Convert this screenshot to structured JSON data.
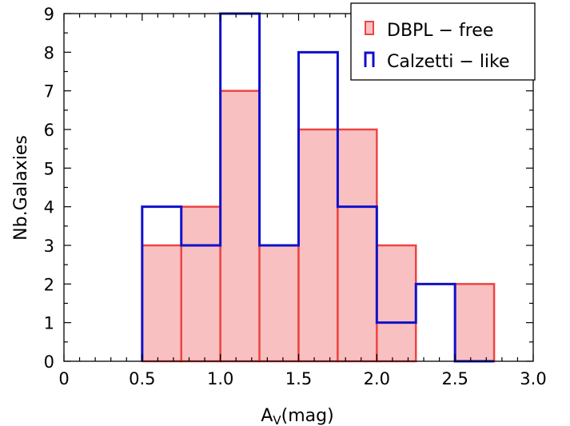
{
  "chart_data": {
    "type": "bar",
    "subtype": "step-histogram",
    "xlabel": "A",
    "xlabel_subscript": "V",
    "xlabel_suffix": "(mag)",
    "ylabel": "Nb.Galaxies",
    "xlim": [
      0,
      3.0
    ],
    "ylim": [
      0,
      9
    ],
    "x_ticks": [
      "0",
      "0.5",
      "1.0",
      "1.5",
      "2.0",
      "2.5",
      "3.0"
    ],
    "y_ticks": [
      "0",
      "1",
      "2",
      "3",
      "4",
      "5",
      "6",
      "7",
      "8",
      "9"
    ],
    "bin_edges": [
      0.5,
      0.75,
      1.0,
      1.25,
      1.5,
      1.75,
      2.0,
      2.25,
      2.5,
      2.75
    ],
    "series": [
      {
        "name": "DBPL − free",
        "style": "filled",
        "fill_color": "#f8c0c0",
        "edge_color": "#ee4444",
        "values": [
          3,
          4,
          7,
          3,
          6,
          6,
          3,
          0,
          2
        ]
      },
      {
        "name": "Calzetti − like",
        "style": "step",
        "edge_color": "#1010cc",
        "values": [
          4,
          3,
          9,
          3,
          8,
          4,
          1,
          2,
          0
        ]
      }
    ],
    "grid": false,
    "legend_position": "top-right"
  }
}
